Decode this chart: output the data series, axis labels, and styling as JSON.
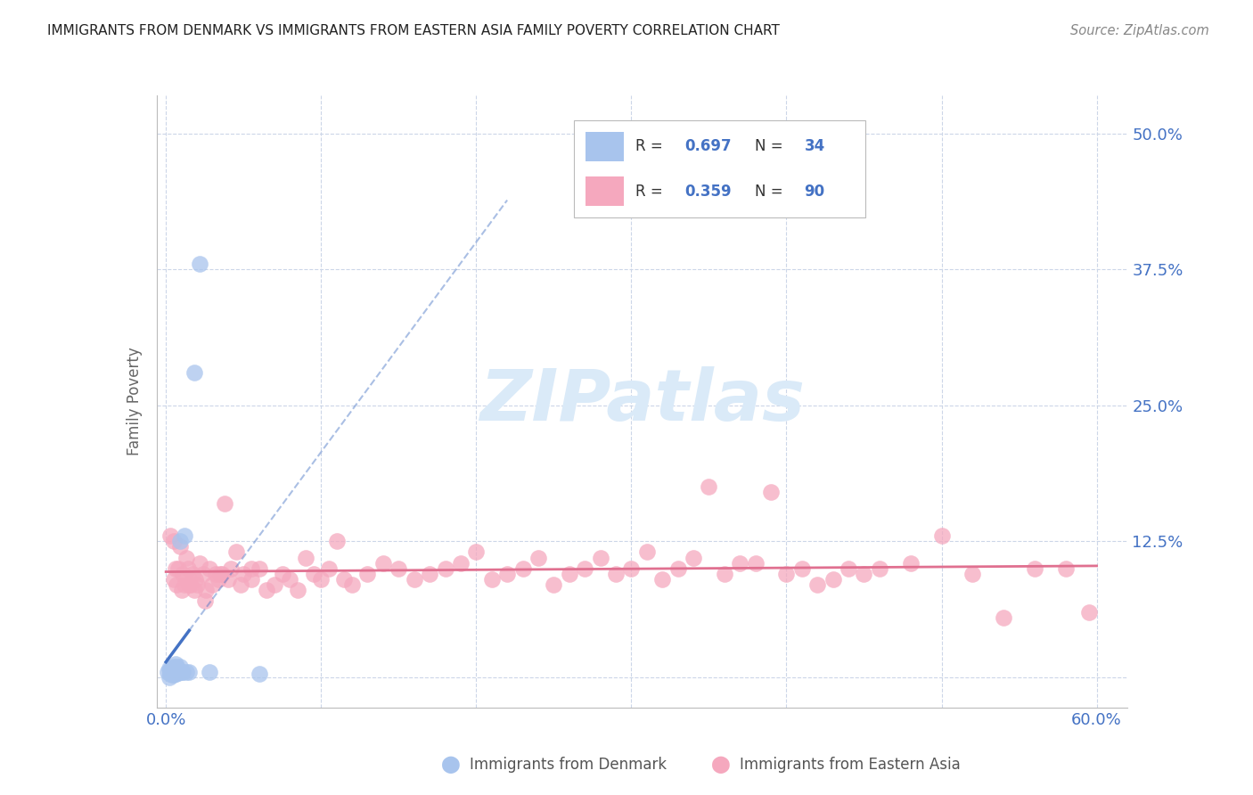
{
  "title": "IMMIGRANTS FROM DENMARK VS IMMIGRANTS FROM EASTERN ASIA FAMILY POVERTY CORRELATION CHART",
  "source": "Source: ZipAtlas.com",
  "ylabel": "Family Poverty",
  "legend_label1": "Immigrants from Denmark",
  "legend_label2": "Immigrants from Eastern Asia",
  "legend_R1": "0.697",
  "legend_N1": "34",
  "legend_R2": "0.359",
  "legend_N2": "90",
  "color_denmark": "#a8c4ed",
  "color_eastern_asia": "#f5a8be",
  "color_trend_denmark": "#4472c4",
  "color_trend_eastern_asia": "#e07090",
  "color_axis_labels": "#4472c4",
  "watermark_color": "#daeaf8"
}
